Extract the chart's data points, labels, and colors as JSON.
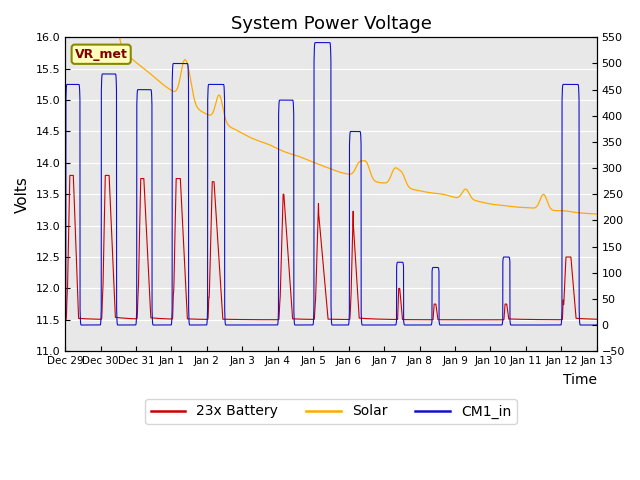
{
  "title": "System Power Voltage",
  "xlabel": "Time",
  "ylabel": "Volts",
  "ylim_left": [
    11.0,
    16.0
  ],
  "ylim_right": [
    -50,
    550
  ],
  "bg_color": "#e8e8e8",
  "fig_color": "#ffffff",
  "vr_met_label": "VR_met",
  "legend_labels": [
    "23x Battery",
    "Solar",
    "CM1_in"
  ],
  "line_colors": [
    "#cc0000",
    "#ffaa00",
    "#1111cc"
  ],
  "x_tick_labels": [
    "Dec 29",
    "Dec 30",
    "Dec 31",
    "Jan 1",
    "Jan 2",
    "Jan 3",
    "Jan 4",
    "Jan 5",
    "Jan 6",
    "Jan 7",
    "Jan 8",
    "Jan 9",
    "Jan 10",
    "Jan 11",
    "Jan 12",
    "Jan 13"
  ],
  "num_points": 4320,
  "left_ticks": [
    11.0,
    11.5,
    12.0,
    12.5,
    13.0,
    13.5,
    14.0,
    14.5,
    15.0,
    15.5,
    16.0
  ],
  "right_ticks": [
    -50,
    0,
    50,
    100,
    150,
    200,
    250,
    300,
    350,
    400,
    450,
    500,
    550
  ]
}
